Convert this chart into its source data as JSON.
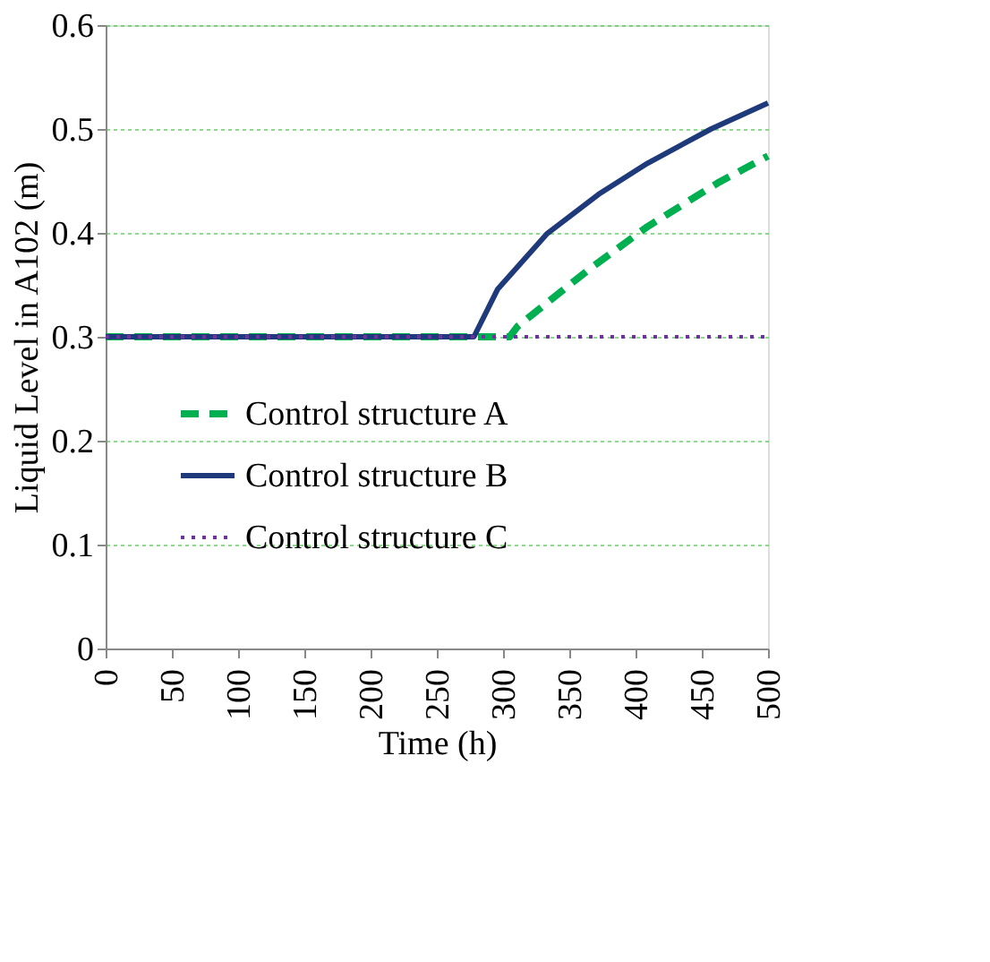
{
  "chart_data": {
    "type": "line",
    "xlabel": "Time (h)",
    "ylabel": "Liquid Level in A102 (m)",
    "xlim": [
      0,
      500
    ],
    "xticks": [
      0,
      50,
      100,
      150,
      200,
      250,
      300,
      350,
      400,
      450,
      500
    ],
    "ylim": [
      0,
      0.6
    ],
    "yticks": [
      0,
      0.1,
      0.2,
      0.3,
      0.4,
      0.5,
      0.6
    ],
    "grid": "y",
    "legend": "left",
    "marker": "none",
    "series": [
      {
        "name": "Control structure A",
        "color": "#00b050",
        "line_style": "dashed",
        "x": [
          0,
          305,
          311,
          364,
          409,
          462,
          500
        ],
        "values": [
          0.3,
          0.3,
          0.31,
          0.364,
          0.406,
          0.448,
          0.474
        ]
      },
      {
        "name": "Control structure B",
        "color": "#1f3a7a",
        "line_style": "solid",
        "x": [
          0,
          278,
          296,
          333,
          372,
          409,
          457,
          500
        ],
        "values": [
          0.3,
          0.3,
          0.346,
          0.399,
          0.437,
          0.467,
          0.5,
          0.525
        ]
      },
      {
        "name": "Control structure C",
        "color": "#7030a0",
        "line_style": "dotted",
        "x": [
          0,
          500
        ],
        "values": [
          0.3,
          0.3
        ]
      }
    ]
  }
}
